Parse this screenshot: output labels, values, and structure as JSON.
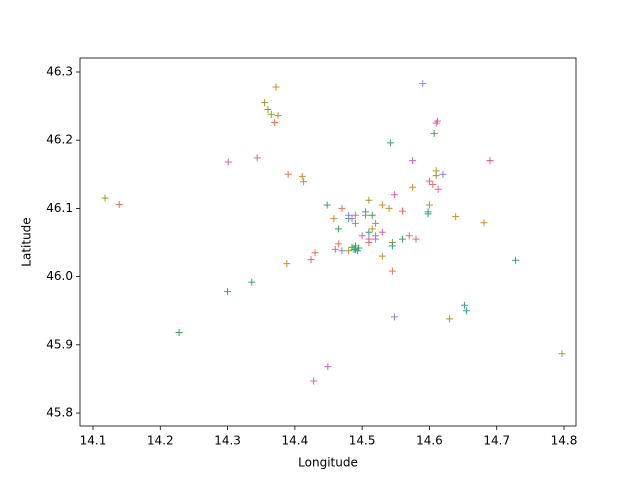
{
  "chart_data": {
    "type": "scatter",
    "x_label": "Longitude",
    "y_label": "Latitude",
    "xlim": [
      14.0807,
      14.8178
    ],
    "ylim": [
      45.781,
      46.3205
    ],
    "xticks": [
      14.1,
      14.2,
      14.3,
      14.4,
      14.5,
      14.6,
      14.7,
      14.8
    ],
    "yticks": [
      45.8,
      45.9,
      {
        "value": 46,
        "label": "46.0"
      },
      46.1,
      46.2,
      46.3
    ],
    "marker": "+",
    "series": [
      {
        "color": "#e8735a",
        "x": [
          14.139,
          14.39,
          14.413,
          14.43,
          14.49,
          14.52,
          14.545,
          14.58,
          14.605,
          14.37,
          14.56,
          14.47,
          14.51,
          14.69,
          14.465
        ],
        "y": [
          46.106,
          46.15,
          46.139,
          46.035,
          46.09,
          46.06,
          46.008,
          46.055,
          46.135,
          46.226,
          46.096,
          46.1,
          46.05,
          46.17,
          46.048
        ]
      },
      {
        "color": "#c98f2a",
        "x": [
          14.372,
          14.388,
          14.411,
          14.54,
          14.53,
          14.575,
          14.6,
          14.639,
          14.681,
          14.797,
          14.49,
          14.515,
          14.61,
          14.53,
          14.458,
          14.375
        ],
        "y": [
          46.278,
          46.019,
          46.147,
          46.1,
          46.105,
          46.131,
          46.105,
          46.088,
          46.079,
          45.887,
          46.04,
          46.07,
          46.155,
          46.03,
          46.085,
          46.236
        ]
      },
      {
        "color": "#9c9c2a",
        "x": [
          14.118,
          14.355,
          14.36,
          14.365,
          14.63,
          14.61,
          14.52,
          14.49,
          14.48,
          14.545,
          14.51
        ],
        "y": [
          46.115,
          46.255,
          46.245,
          46.238,
          45.938,
          46.148,
          46.078,
          46.078,
          46.038,
          46.05,
          46.112
        ]
      },
      {
        "color": "#3aa55a",
        "x": [
          14.228,
          14.336,
          14.542,
          14.607,
          14.448,
          14.598,
          14.56,
          14.465,
          14.515,
          14.49,
          14.49,
          14.485,
          14.495,
          14.505,
          14.48
        ],
        "y": [
          45.918,
          45.992,
          46.196,
          46.21,
          46.105,
          46.095,
          46.055,
          46.07,
          46.09,
          46.045,
          46.04,
          46.043,
          46.042,
          46.095,
          46.085
        ]
      },
      {
        "color": "#2ba58f",
        "x": [
          14.3,
          14.652,
          14.655,
          14.728,
          14.598,
          14.488,
          14.493,
          14.51,
          14.545
        ],
        "y": [
          45.978,
          45.958,
          45.95,
          46.024,
          46.092,
          46.04,
          46.038,
          46.065,
          46.045
        ]
      },
      {
        "color": "#8e80e8",
        "x": [
          14.59,
          14.548,
          14.485,
          14.505,
          14.62,
          14.47,
          14.52,
          14.48
        ],
        "y": [
          46.283,
          45.941,
          46.085,
          46.09,
          46.15,
          46.038,
          46.055,
          46.09
        ]
      },
      {
        "color": "#e060a8",
        "x": [
          14.301,
          14.344,
          14.428,
          14.449,
          14.424,
          14.575,
          14.612,
          14.61,
          14.613,
          14.548,
          14.57,
          14.6,
          14.53,
          14.5,
          14.46,
          14.51,
          14.69
        ],
        "y": [
          46.168,
          46.174,
          45.847,
          45.868,
          46.025,
          46.17,
          46.228,
          46.225,
          46.128,
          46.12,
          46.06,
          46.14,
          46.065,
          46.06,
          46.04,
          46.055,
          46.17
        ]
      }
    ]
  }
}
